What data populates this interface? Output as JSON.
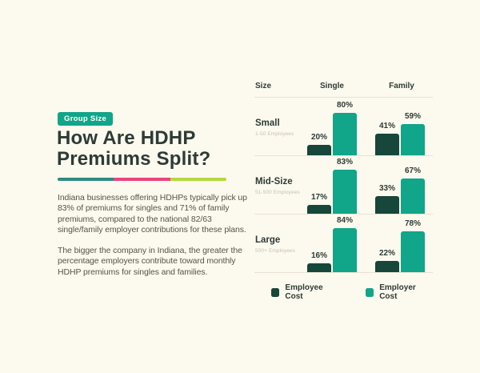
{
  "page": {
    "background_color": "#FCF9EE"
  },
  "left": {
    "badge": "Group Size",
    "title_lines": [
      "How Are HDHP",
      "Premiums Split?"
    ],
    "divider_colors": [
      "#2F8C80",
      "#E8457E",
      "#B5D93F"
    ],
    "paragraph1": "Indiana businesses offering HDHPs typically pick up 83% of premiums for singles and 71% of family premiums, compared to the national 82/63 single/family employer contributions for these plans.",
    "paragraph2": "The bigger the company in Indiana, the greater the percentage employers contribute toward monthly HDHP premiums for singles and families."
  },
  "chart_data": {
    "type": "bar",
    "title": "HDHP premium split by group size",
    "unit": "percent of premium",
    "value_suffix": "%",
    "ylim": [
      0,
      100
    ],
    "columns": [
      "Size",
      "Single",
      "Family"
    ],
    "series": [
      "Employee Cost",
      "Employer Cost"
    ],
    "rows": [
      {
        "label": "Small",
        "sublabel": "1-50 Employees",
        "single": [
          20,
          80
        ],
        "family": [
          41,
          59
        ]
      },
      {
        "label": "Mid-Size",
        "sublabel": "51-500 Employees",
        "single": [
          17,
          83
        ],
        "family": [
          33,
          67
        ]
      },
      {
        "label": "Large",
        "sublabel": "500+ Employees",
        "single": [
          16,
          84
        ],
        "family": [
          22,
          78
        ]
      }
    ],
    "legend": [
      {
        "label": "Employee Cost",
        "color": "#17463A"
      },
      {
        "label": "Employer Cost",
        "color": "#11A58A"
      }
    ],
    "legend_position": "bottom",
    "grid": "horizontal row separators"
  },
  "colors": {
    "accent_teal": "#11A58A",
    "dark_green": "#17463A",
    "heading_text": "#2D3B36",
    "body_text": "#56554C",
    "separator_line": "#E8E2D2",
    "sublabel_gray": "#C6C2B1"
  }
}
